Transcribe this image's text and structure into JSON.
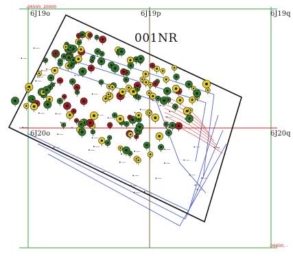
{
  "site_name": "001NR",
  "grid_labels": {
    "top_left": "6J19o",
    "top_middle": "6J19p",
    "top_right": "6J19q",
    "middle_left": "6J20o",
    "middle_right": "6J20q"
  },
  "coordinates": {
    "top_left": "-06500, 20000",
    "bottom_right": "-06600, -"
  },
  "symbols": {
    "colors": {
      "green": "#2f7d2a",
      "yellow": "#e8d11c",
      "red": "#a81c1c",
      "grid_green": "#3aa13a",
      "grid_red": "#c8202a",
      "contour_blue": "#3d52c4",
      "contour_red": "#d0483a",
      "boundary": "#111111"
    }
  }
}
